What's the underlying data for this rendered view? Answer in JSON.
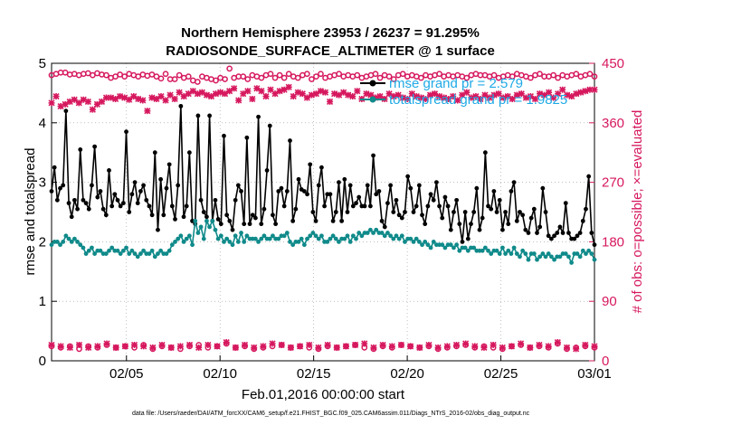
{
  "chart_data": {
    "type": "line",
    "title": "Northern Hemisphere 23953 / 26237 = 91.295%",
    "subtitle": "RADIOSONDE_SURFACE_ALTIMETER @ 1 surface",
    "xlabel": "Feb.01,2016 00:00:00 start",
    "ylabel": "rmse and totalspread",
    "y2label": "# of obs: o=possible; ×=evaluated",
    "footnote": "data file: /Users/raeder/DAI/ATM_forcXX/CAM6_setup/f.e21.FHIST_BGC.f09_025.CAM6assim.011/Diags_NTrS_2016-02/obs_diag_output.nc",
    "xlim": [
      0,
      29
    ],
    "ylim": [
      0,
      5
    ],
    "y2lim": [
      0,
      450
    ],
    "xticks": [
      4,
      9,
      14,
      19,
      24,
      29
    ],
    "xtick_labels": [
      "02/05",
      "02/10",
      "02/15",
      "02/20",
      "02/25",
      "03/01"
    ],
    "yticks": [
      0,
      1,
      2,
      3,
      4,
      5
    ],
    "ytick_labels": [
      "0",
      "1",
      "2",
      "3",
      "4",
      "5"
    ],
    "y2ticks": [
      0,
      90,
      180,
      270,
      360,
      450
    ],
    "y2tick_labels": [
      "0",
      "90",
      "180",
      "270",
      "360",
      "450"
    ],
    "grid": true,
    "legend_position": "top-right",
    "series": [
      {
        "name": "rmse",
        "legend": "rmse grand pr = 2.579",
        "color": "#000000",
        "axis": "left",
        "values": [
          2.85,
          3.25,
          2.7,
          2.9,
          2.95,
          4.2,
          2.65,
          2.42,
          2.7,
          2.55,
          3.55,
          2.7,
          2.65,
          2.55,
          2.95,
          3.6,
          2.75,
          2.85,
          2.55,
          2.45,
          3.2,
          2.6,
          2.8,
          2.7,
          2.6,
          2.65,
          3.85,
          2.5,
          2.8,
          3.0,
          2.65,
          2.85,
          2.95,
          2.7,
          2.6,
          2.45,
          3.5,
          2.2,
          3.05,
          2.45,
          2.9,
          3.3,
          2.6,
          2.38,
          2.95,
          4.28,
          2.42,
          2.6,
          3.5,
          2.35,
          2.3,
          4.12,
          2.7,
          2.5,
          2.42,
          4.12,
          2.35,
          2.7,
          2.38,
          2.3,
          3.78,
          2.45,
          2.35,
          2.2,
          2.7,
          2.95,
          2.85,
          2.3,
          3.75,
          2.3,
          2.45,
          2.4,
          4.1,
          2.3,
          2.55,
          3.2,
          3.95,
          2.45,
          2.3,
          2.85,
          2.9,
          2.6,
          2.85,
          3.7,
          2.35,
          2.55,
          3.05,
          2.88,
          2.85,
          2.8,
          3.3,
          2.5,
          2.35,
          2.95,
          3.25,
          2.6,
          2.8,
          2.8,
          2.35,
          2.5,
          3.0,
          2.35,
          3.05,
          2.5,
          2.95,
          2.6,
          2.65,
          2.75,
          2.6,
          2.6,
          2.95,
          2.6,
          3.45,
          2.8,
          2.85,
          2.35,
          2.25,
          2.65,
          2.95,
          2.5,
          2.7,
          2.45,
          2.4,
          2.5,
          3.1,
          2.9,
          2.5,
          2.6,
          2.95,
          2.45,
          2.3,
          2.6,
          2.8,
          2.7,
          3.0,
          2.6,
          2.4,
          2.75,
          2.6,
          2.2,
          2.5,
          2.7,
          2.3,
          2.0,
          2.5,
          2.05,
          2.3,
          2.5,
          2.9,
          2.2,
          2.4,
          3.5,
          2.6,
          2.55,
          2.85,
          2.5,
          2.7,
          2.2,
          2.5,
          2.3,
          2.85,
          3.0,
          2.35,
          2.5,
          2.45,
          2.2,
          2.15,
          2.4,
          2.55,
          2.15,
          2.25,
          2.9,
          2.5,
          2.1,
          2.05,
          2.1,
          2.15,
          2.25,
          2.15,
          2.65,
          2.15,
          2.05,
          2.05,
          2.1,
          2.15,
          2.35,
          2.55,
          3.1,
          2.15,
          1.95
        ]
      },
      {
        "name": "totalspread",
        "legend": "totalspread grand pr = 1.9825",
        "color": "#108a8a",
        "axis": "left",
        "values": [
          1.95,
          2.0,
          2.0,
          1.95,
          2.0,
          2.1,
          2.05,
          2.0,
          2.05,
          2.0,
          1.95,
          1.9,
          1.8,
          1.85,
          1.9,
          1.8,
          1.85,
          1.85,
          1.8,
          1.8,
          1.85,
          1.9,
          1.85,
          1.85,
          1.8,
          1.85,
          1.9,
          1.8,
          1.85,
          1.8,
          1.75,
          1.8,
          1.85,
          1.8,
          1.8,
          1.85,
          1.75,
          1.8,
          1.85,
          1.8,
          1.8,
          1.85,
          1.95,
          2.0,
          2.05,
          2.1,
          2.0,
          2.05,
          2.1,
          1.95,
          2.35,
          2.15,
          2.25,
          2.05,
          2.35,
          2.25,
          2.35,
          2.2,
          2.05,
          2.1,
          2.0,
          2.05,
          2.0,
          1.95,
          2.1,
          2.0,
          2.15,
          2.0,
          2.1,
          2.05,
          2.05,
          2.05,
          2.0,
          2.05,
          2.1,
          2.05,
          2.05,
          2.1,
          2.05,
          2.05,
          2.1,
          2.1,
          2.15,
          2.0,
          1.95,
          2.0,
          2.0,
          2.05,
          1.95,
          2.05,
          2.1,
          2.15,
          2.1,
          2.05,
          2.1,
          2.0,
          2.0,
          2.05,
          2.1,
          2.05,
          2.0,
          2.05,
          2.05,
          2.1,
          2.0,
          2.1,
          2.05,
          2.15,
          2.1,
          2.15,
          2.15,
          2.2,
          2.15,
          2.2,
          2.15,
          2.15,
          2.1,
          2.15,
          2.1,
          2.05,
          2.1,
          2.05,
          2.1,
          2.0,
          2.05,
          2.05,
          2.0,
          2.05,
          2.0,
          1.95,
          2.0,
          1.95,
          1.9,
          2.0,
          1.95,
          1.95,
          1.95,
          1.9,
          1.95,
          1.95,
          1.9,
          1.95,
          1.85,
          1.9,
          1.9,
          1.85,
          1.9,
          1.9,
          1.85,
          1.85,
          1.85,
          1.9,
          1.85,
          1.8,
          1.85,
          1.85,
          1.8,
          1.9,
          1.8,
          1.85,
          1.8,
          1.9,
          1.8,
          1.75,
          1.85,
          1.8,
          1.7,
          1.8,
          1.8,
          1.7,
          1.75,
          1.8,
          1.75,
          1.8,
          1.75,
          1.7,
          1.75,
          1.75,
          1.8,
          1.8,
          1.75,
          1.65,
          1.8,
          1.8,
          1.75,
          1.85,
          1.8,
          1.85,
          1.8,
          1.7
        ]
      },
      {
        "name": "obs possible (NH, o)",
        "color": "#d6185e",
        "axis": "right",
        "values": [
          432,
          434,
          436,
          436,
          433,
          434,
          432,
          434,
          435,
          432,
          435,
          433,
          432,
          428,
          430,
          433,
          430,
          434,
          432,
          430,
          433,
          431,
          433,
          430,
          427,
          434,
          426,
          426,
          432,
          428,
          430,
          424,
          422,
          430,
          428,
          426,
          424,
          428,
          426,
          442,
          428,
          430,
          430,
          426,
          432,
          430,
          428,
          432,
          434,
          428,
          432,
          428,
          434,
          430,
          428,
          432,
          434,
          426,
          430,
          434,
          428,
          430,
          432,
          434,
          430,
          432,
          430,
          432,
          428,
          430,
          432,
          434,
          428,
          432,
          430,
          426,
          432,
          434,
          430,
          432,
          430,
          428,
          432,
          430,
          432,
          434,
          430,
          432,
          430,
          432,
          430,
          428,
          432,
          434,
          432,
          432,
          430,
          432,
          428,
          430,
          432,
          430,
          434,
          432,
          430,
          428,
          432,
          434,
          430,
          430,
          432,
          428,
          432,
          430,
          432,
          434,
          430,
          432,
          434,
          430
        ]
      },
      {
        "name": "obs evaluated (NH, ×)",
        "color": "#d6185e",
        "axis": "right",
        "values": [
          390,
          400,
          385,
          388,
          392,
          395,
          390,
          395,
          392,
          380,
          388,
          392,
          398,
          398,
          396,
          400,
          398,
          395,
          400,
          396,
          394,
          378,
          398,
          396,
          400,
          394,
          402,
          396,
          406,
          400,
          404,
          408,
          404,
          406,
          402,
          400,
          404,
          406,
          404,
          408,
          412,
          394,
          404,
          408,
          396,
          412,
          408,
          400,
          410,
          404,
          408,
          410,
          414,
          400,
          406,
          404,
          398,
          402,
          404,
          408,
          406,
          392,
          404,
          402,
          406,
          402,
          400,
          408,
          396,
          404,
          402,
          398,
          400,
          396,
          404,
          400,
          402,
          398,
          396,
          404,
          400,
          398,
          396,
          402,
          404,
          400,
          398,
          396,
          400,
          394,
          402,
          406,
          398,
          400,
          396,
          402,
          398,
          402,
          404,
          398,
          400,
          396,
          402,
          404,
          398,
          400,
          396,
          404,
          402,
          406,
          398,
          404,
          410,
          402,
          400,
          404,
          406,
          408,
          410,
          410
        ]
      },
      {
        "name": "obs possible (bottom, o)",
        "color": "#d6185e",
        "axis": "right",
        "values": [
          22,
          20,
          22,
          18,
          22,
          20,
          24,
          20,
          22,
          20,
          24,
          18,
          22,
          20,
          18,
          22,
          24,
          20,
          22,
          26,
          20,
          22,
          18,
          20,
          22,
          24,
          20,
          22,
          20,
          18,
          22,
          20,
          22,
          24,
          20,
          18,
          22,
          20,
          24,
          22,
          20,
          22,
          18,
          20,
          22,
          24,
          20,
          22,
          20,
          18,
          22,
          24,
          20,
          22,
          20,
          26,
          18,
          20,
          22,
          20
        ]
      },
      {
        "name": "obs evaluated (bottom, ×)",
        "color": "#d6185e",
        "axis": "right",
        "values": [
          24,
          22,
          20,
          24,
          20,
          22,
          26,
          20,
          22,
          24,
          22,
          20,
          24,
          20,
          22,
          24,
          20,
          24,
          22,
          28,
          20,
          24,
          20,
          22,
          26,
          24,
          20,
          22,
          24,
          20,
          24,
          20,
          22,
          24,
          26,
          20,
          24,
          22,
          24,
          22,
          20,
          24,
          20,
          22,
          24,
          26,
          22,
          20,
          24,
          20,
          22,
          26,
          20,
          24,
          22,
          28,
          20,
          18,
          24,
          22
        ]
      }
    ]
  }
}
